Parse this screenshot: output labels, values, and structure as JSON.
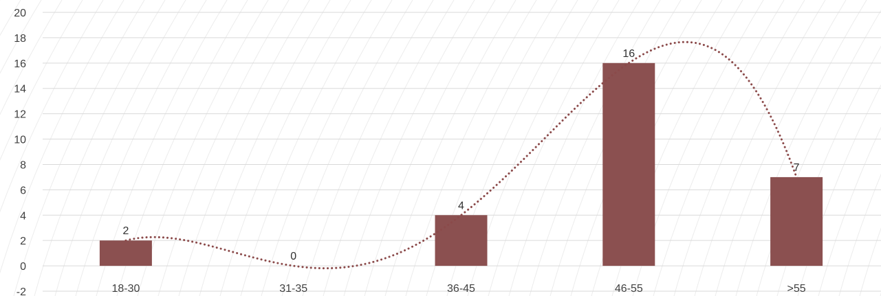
{
  "chart_data": {
    "type": "bar",
    "categories": [
      "18-30",
      "31-35",
      "36-45",
      "46-55",
      ">55"
    ],
    "values": [
      2,
      0,
      4,
      16,
      7
    ],
    "data_labels": [
      "2",
      "0",
      "4",
      "16",
      "7"
    ],
    "ylim": [
      -2,
      20
    ],
    "yticks": [
      -2,
      0,
      2,
      4,
      6,
      8,
      10,
      12,
      14,
      16,
      18,
      20
    ],
    "ytick_labels": [
      "-2",
      "0",
      "2",
      "4",
      "6",
      "8",
      "10",
      "12",
      "14",
      "16",
      "18",
      "20"
    ],
    "grid": true,
    "trendline": {
      "type": "polynomial",
      "style": "dotted"
    },
    "colors": {
      "bar": "#8b5050",
      "trendline": "#8b4a4a",
      "grid": "#d9d9d9"
    }
  }
}
